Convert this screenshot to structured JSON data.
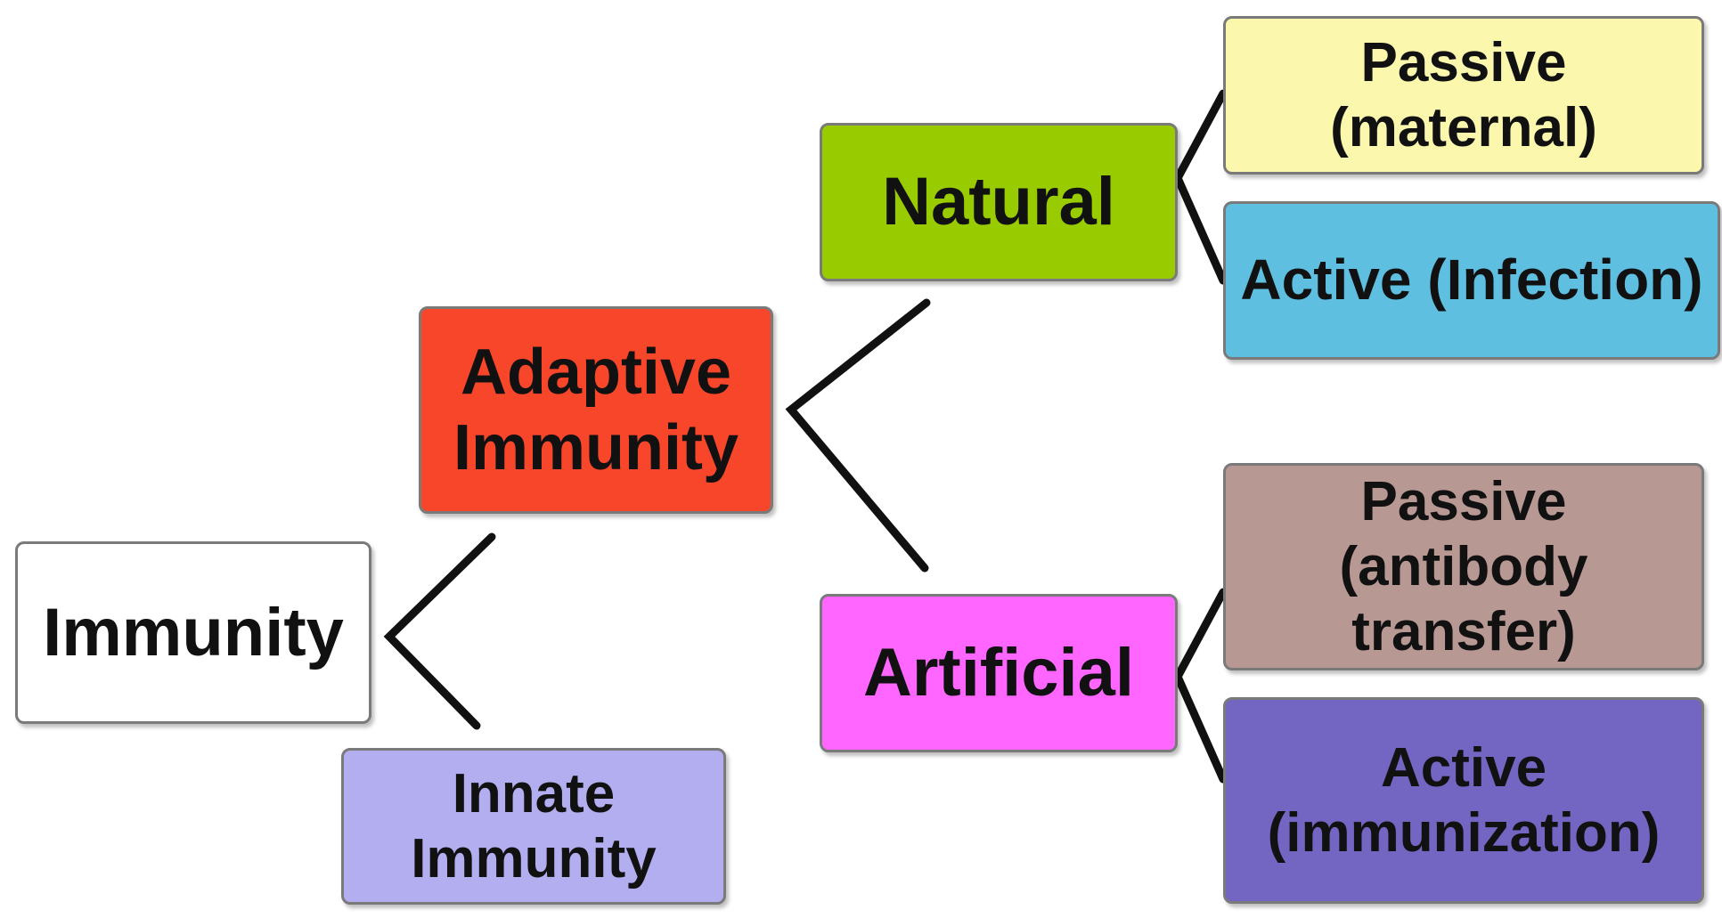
{
  "nodes": {
    "immunity": {
      "label": "Immunity",
      "color": "#ffffff"
    },
    "adaptive": {
      "line1": "Adaptive",
      "line2": "Immunity",
      "color": "#f7462a"
    },
    "innate": {
      "label": "Innate Immunity",
      "color": "#b3aef0"
    },
    "natural": {
      "label": "Natural",
      "color": "#99cc00"
    },
    "artificial": {
      "label": "Artificial",
      "color": "#ff66ff"
    },
    "passive_maternal": {
      "label": "Passive (maternal)",
      "color": "#fbf8ad"
    },
    "active_infection": {
      "label": "Active (Infection)",
      "color": "#5ebfe0"
    },
    "passive_antibody": {
      "line1": "Passive",
      "line2": "(antibody transfer)",
      "color": "#b89893"
    },
    "active_immunization": {
      "line1": "Active",
      "line2": "(immunization)",
      "color": "#7365c2"
    }
  },
  "connector_color": "#111111"
}
